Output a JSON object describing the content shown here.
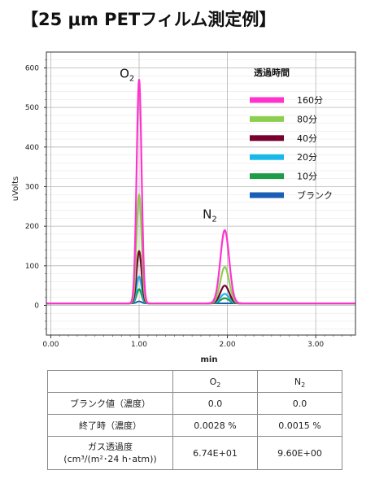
{
  "title": "【25 μm PETフィルム測定例】",
  "chart_data": {
    "type": "line",
    "xlabel": "min",
    "ylabel": "uVolts",
    "xlim": [
      -0.05,
      3.45
    ],
    "ylim": [
      -75,
      640
    ],
    "xticks": [
      "0.00",
      "1.00",
      "2.00",
      "3.00"
    ],
    "xtick_values": [
      0,
      1,
      2,
      3
    ],
    "yticks": [
      "0",
      "100",
      "200",
      "300",
      "400",
      "500",
      "600"
    ],
    "ytick_values": [
      0,
      100,
      200,
      300,
      400,
      500,
      600
    ],
    "grid": true,
    "legend_title": "透過時間",
    "legend_position": "top-right",
    "peak_labels": [
      {
        "base": "O",
        "sub": "2",
        "x": 0.78,
        "y": 575
      },
      {
        "base": "N",
        "sub": "2",
        "x": 1.72,
        "y": 220
      }
    ],
    "baseline": 5,
    "peaks": [
      {
        "name": "O2",
        "x": 1.0,
        "width": 0.028
      },
      {
        "name": "N2",
        "x": 1.97,
        "width": 0.05
      }
    ],
    "series": [
      {
        "name": "160分",
        "color": "#ff33cc",
        "peak_values": [
          565,
          185
        ],
        "line_width": 2.2
      },
      {
        "name": "80分",
        "color": "#8ccf50",
        "peak_values": [
          275,
          92
        ],
        "line_width": 2.2
      },
      {
        "name": "40分",
        "color": "#7a0030",
        "peak_values": [
          132,
          45
        ],
        "line_width": 2.2
      },
      {
        "name": "20分",
        "color": "#1ab8e8",
        "peak_values": [
          68,
          24
        ],
        "line_width": 2.2
      },
      {
        "name": "10分",
        "color": "#1e9c46",
        "peak_values": [
          36,
          13
        ],
        "line_width": 2.2
      },
      {
        "name": "ブランク",
        "color": "#1a5fb4",
        "peak_values": [
          5,
          0
        ],
        "line_width": 2.0
      }
    ]
  },
  "table": {
    "headers": [
      "",
      "O",
      "N"
    ],
    "header_subs": [
      "",
      "2",
      "2"
    ],
    "rows": [
      {
        "label": "ブランク値（濃度）",
        "o2": "0.0",
        "n2": "0.0"
      },
      {
        "label": "終了時（濃度）",
        "o2": "0.0028 %",
        "n2": "0.0015 %"
      },
      {
        "label_line1": "ガス透過度",
        "label_line2": "(cm³/(m²･24 h･atm))",
        "o2": "6.74E+01",
        "n2": "9.60E+00"
      }
    ]
  }
}
